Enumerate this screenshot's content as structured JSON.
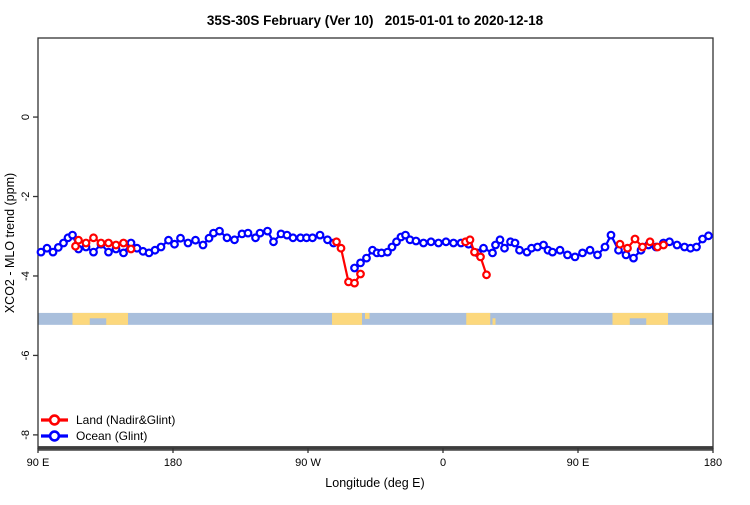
{
  "title": "35S-30S February (Ver 10)   2015-01-01 to 2020-12-18",
  "chart_data": {
    "type": "line",
    "title": "35S-30S February (Ver 10)   2015-01-01 to 2020-12-18",
    "xlabel": "Longitude (deg E)",
    "ylabel": "XCO2 - MLO trend (ppm)",
    "xlim": [
      90,
      540
    ],
    "ylim": [
      -8.33,
      1.99
    ],
    "grid": false,
    "x_ticks": [
      {
        "value": 90,
        "label": "90 E"
      },
      {
        "value": 180,
        "label": "180"
      },
      {
        "value": 270,
        "label": "90 W"
      },
      {
        "value": 360,
        "label": "0"
      },
      {
        "value": 450,
        "label": "90 E"
      },
      {
        "value": 540,
        "label": "180"
      }
    ],
    "y_ticks": [
      {
        "value": 0,
        "label": "0"
      },
      {
        "value": -2,
        "label": "-2"
      },
      {
        "value": -4,
        "label": "-4"
      },
      {
        "value": -6,
        "label": "-6"
      },
      {
        "value": -8,
        "label": "-8"
      }
    ],
    "legend": {
      "position": "bottom-left-inside",
      "items": [
        {
          "label": "Land (Nadir&Glint)",
          "color": "#ff0000"
        },
        {
          "label": "Ocean (Glint)",
          "color": "#0000ff"
        }
      ]
    },
    "series": [
      {
        "name": "Ocean (Glint)",
        "color": "#0000ff",
        "marker": "open-circle",
        "segments": [
          [
            [
              92,
              -3.4
            ],
            [
              96,
              -3.3
            ],
            [
              100,
              -3.4
            ],
            [
              103.5,
              -3.28
            ],
            [
              107,
              -3.17
            ],
            [
              110,
              -3.04
            ],
            [
              113,
              -2.97
            ],
            [
              117,
              -3.32
            ],
            [
              122,
              -3.27
            ],
            [
              127,
              -3.4
            ],
            [
              132,
              -3.2
            ],
            [
              137,
              -3.4
            ],
            [
              142,
              -3.32
            ],
            [
              147,
              -3.42
            ],
            [
              152,
              -3.17
            ],
            [
              156,
              -3.3
            ],
            [
              160,
              -3.38
            ],
            [
              164,
              -3.42
            ],
            [
              168,
              -3.35
            ],
            [
              172,
              -3.27
            ],
            [
              177,
              -3.1
            ],
            [
              181,
              -3.2
            ],
            [
              185,
              -3.05
            ],
            [
              190,
              -3.17
            ],
            [
              195,
              -3.1
            ],
            [
              200,
              -3.22
            ],
            [
              204,
              -3.05
            ],
            [
              207,
              -2.92
            ],
            [
              211,
              -2.87
            ],
            [
              216,
              -3.04
            ],
            [
              221,
              -3.09
            ],
            [
              226,
              -2.94
            ],
            [
              230,
              -2.92
            ],
            [
              235,
              -3.04
            ],
            [
              238,
              -2.92
            ],
            [
              243,
              -2.87
            ],
            [
              247,
              -3.14
            ],
            [
              252,
              -2.94
            ],
            [
              256,
              -2.97
            ],
            [
              260,
              -3.04
            ],
            [
              265,
              -3.04
            ],
            [
              269,
              -3.04
            ],
            [
              273,
              -3.04
            ],
            [
              278,
              -2.97
            ],
            [
              283,
              -3.09
            ],
            [
              287,
              -3.17
            ]
          ],
          [
            [
              301,
              -3.8
            ],
            [
              305,
              -3.67
            ],
            [
              309,
              -3.55
            ],
            [
              313,
              -3.35
            ],
            [
              316,
              -3.42
            ],
            [
              319,
              -3.42
            ],
            [
              323,
              -3.4
            ],
            [
              326,
              -3.27
            ],
            [
              329,
              -3.14
            ],
            [
              332,
              -3.02
            ],
            [
              335,
              -2.97
            ],
            [
              338,
              -3.09
            ],
            [
              342,
              -3.12
            ],
            [
              347,
              -3.17
            ],
            [
              352,
              -3.14
            ],
            [
              357,
              -3.17
            ],
            [
              362,
              -3.14
            ],
            [
              367,
              -3.17
            ],
            [
              372,
              -3.17
            ],
            [
              377,
              -3.2
            ],
            [
              383,
              -3.42
            ],
            [
              387,
              -3.3
            ],
            [
              393,
              -3.42
            ],
            [
              395,
              -3.22
            ],
            [
              398,
              -3.09
            ],
            [
              401,
              -3.3
            ],
            [
              405,
              -3.14
            ],
            [
              408,
              -3.17
            ],
            [
              411,
              -3.35
            ],
            [
              416,
              -3.4
            ],
            [
              419,
              -3.3
            ],
            [
              423,
              -3.27
            ],
            [
              427,
              -3.22
            ],
            [
              430,
              -3.35
            ],
            [
              433,
              -3.4
            ],
            [
              438,
              -3.35
            ],
            [
              443,
              -3.47
            ],
            [
              448,
              -3.52
            ],
            [
              453,
              -3.42
            ],
            [
              458,
              -3.35
            ],
            [
              463,
              -3.47
            ],
            [
              468,
              -3.27
            ],
            [
              472,
              -2.97
            ],
            [
              477,
              -3.35
            ],
            [
              482,
              -3.47
            ],
            [
              487,
              -3.55
            ],
            [
              492,
              -3.35
            ],
            [
              497,
              -3.22
            ],
            [
              502,
              -3.27
            ],
            [
              507,
              -3.17
            ],
            [
              511,
              -3.14
            ],
            [
              516,
              -3.22
            ],
            [
              521,
              -3.27
            ],
            [
              525,
              -3.3
            ],
            [
              529,
              -3.27
            ],
            [
              533,
              -3.07
            ],
            [
              537,
              -2.99
            ]
          ]
        ]
      },
      {
        "name": "Land (Nadir&Glint)",
        "color": "#ff0000",
        "marker": "open-circle",
        "segments": [
          [
            [
              115,
              -3.25
            ],
            [
              117,
              -3.1
            ],
            [
              122,
              -3.17
            ],
            [
              127,
              -3.04
            ],
            [
              132,
              -3.17
            ],
            [
              137,
              -3.17
            ],
            [
              142,
              -3.22
            ],
            [
              147,
              -3.17
            ],
            [
              152,
              -3.32
            ]
          ],
          [
            [
              289,
              -3.14
            ],
            [
              292,
              -3.3
            ],
            [
              297,
              -4.15
            ],
            [
              301,
              -4.18
            ],
            [
              305,
              -3.95
            ]
          ],
          [
            [
              375,
              -3.14
            ],
            [
              378,
              -3.09
            ],
            [
              381,
              -3.4
            ],
            [
              385,
              -3.52
            ],
            [
              389,
              -3.97
            ]
          ],
          [
            [
              478,
              -3.2
            ],
            [
              483,
              -3.3
            ],
            [
              488,
              -3.07
            ],
            [
              493,
              -3.27
            ],
            [
              498,
              -3.14
            ],
            [
              503,
              -3.27
            ],
            [
              507,
              -3.22
            ]
          ]
        ]
      }
    ],
    "map_strip": {
      "comment": "latitude-band world map inset: ocean strip with land patches",
      "top_ppm": -4.93,
      "bottom_ppm": -5.23,
      "ocean_color": "#a9bfdc",
      "land_color": "#fcd87d",
      "land_patches": [
        {
          "from": 113,
          "to": 150,
          "part": "full"
        },
        {
          "from": 286,
          "to": 306,
          "part": "full"
        },
        {
          "from": 308,
          "to": 311,
          "part": "upper"
        },
        {
          "from": 375.5,
          "to": 391.5,
          "part": "full"
        },
        {
          "from": 393,
          "to": 395,
          "part": "lower"
        },
        {
          "from": 473,
          "to": 510,
          "part": "full"
        }
      ],
      "ocean_notches": [
        {
          "from": 124.5,
          "to": 135.5,
          "part": "lower"
        },
        {
          "from": 484.5,
          "to": 495.5,
          "part": "lower"
        }
      ]
    },
    "baseline_bar": {
      "from_ppm": -8.28,
      "to_ppm": -8.4,
      "color": "#4c4c4c"
    }
  }
}
